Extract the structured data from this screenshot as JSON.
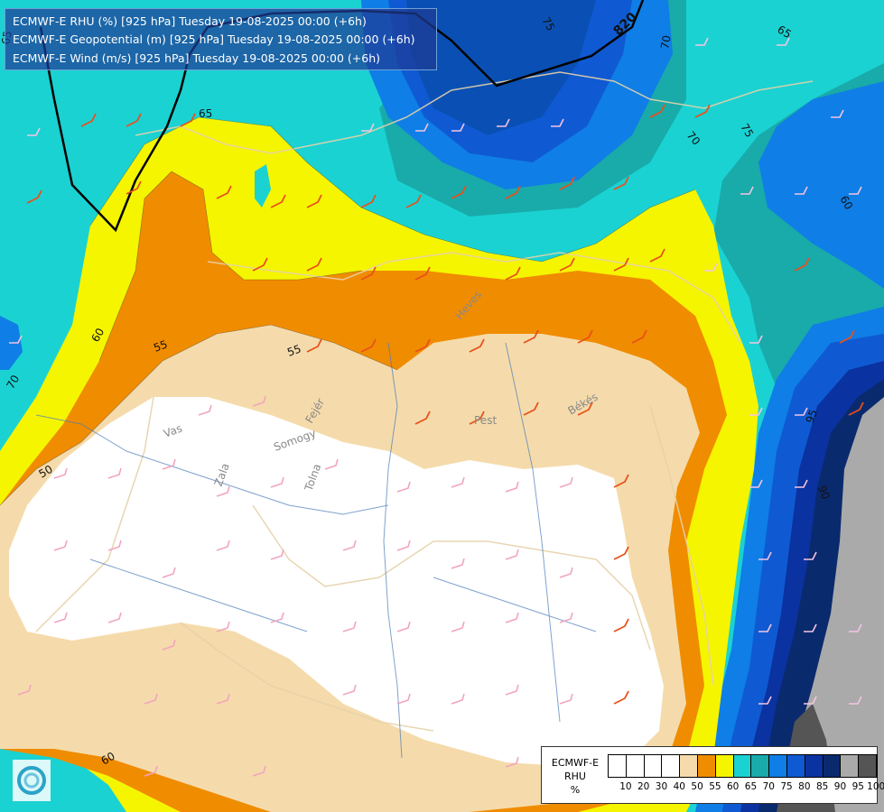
{
  "header": {
    "lines": [
      "ECMWF-E RHU (%) [925 hPa] Tuesday 19-08-2025 00:00 (+6h)",
      "ECMWF-E Geopotential (m) [925 hPa] Tuesday 19-08-2025 00:00 (+6h)",
      "ECMWF-E Wind (m/s) [925 hPa] Tuesday 19-08-2025 00:00 (+6h)"
    ]
  },
  "legend": {
    "model": "ECMWF-E",
    "variable": "RHU",
    "unit": "%",
    "levels": [
      "10",
      "20",
      "30",
      "40",
      "50",
      "55",
      "60",
      "65",
      "70",
      "75",
      "80",
      "85",
      "90",
      "95",
      "100"
    ],
    "colors": [
      "#ffffff",
      "#ffffff",
      "#ffffff",
      "#ffffff",
      "#f5dbab",
      "#f08c00",
      "#f5f500",
      "#1ad2d2",
      "#19aaaa",
      "#0f7ee6",
      "#0f5ad2",
      "#0a32a0",
      "#0a2a6e",
      "#aaaaaa",
      "#555555"
    ]
  },
  "map": {
    "contour_labels": [
      "65",
      "75",
      "820",
      "70",
      "65",
      "75",
      "60",
      "70",
      "60",
      "55",
      "55",
      "65",
      "50",
      "70",
      "95",
      "90",
      "60"
    ],
    "region_labels": [
      "Heves",
      "Pest",
      "Békés",
      "Vas",
      "Somogy",
      "Fejér",
      "Zala",
      "Tolna"
    ]
  },
  "colors": {
    "rhu_white": "#ffffff",
    "rhu_50": "#f5dbab",
    "rhu_55": "#f08c00",
    "rhu_60": "#f5f500",
    "rhu_65": "#1ad2d2",
    "rhu_70": "#19aaaa",
    "rhu_75": "#0f7ee6",
    "rhu_80": "#0f5ad2",
    "rhu_85": "#0a32a0",
    "rhu_90": "#0a2a6e",
    "rhu_95": "#aaaaaa",
    "rhu_100": "#555555"
  }
}
